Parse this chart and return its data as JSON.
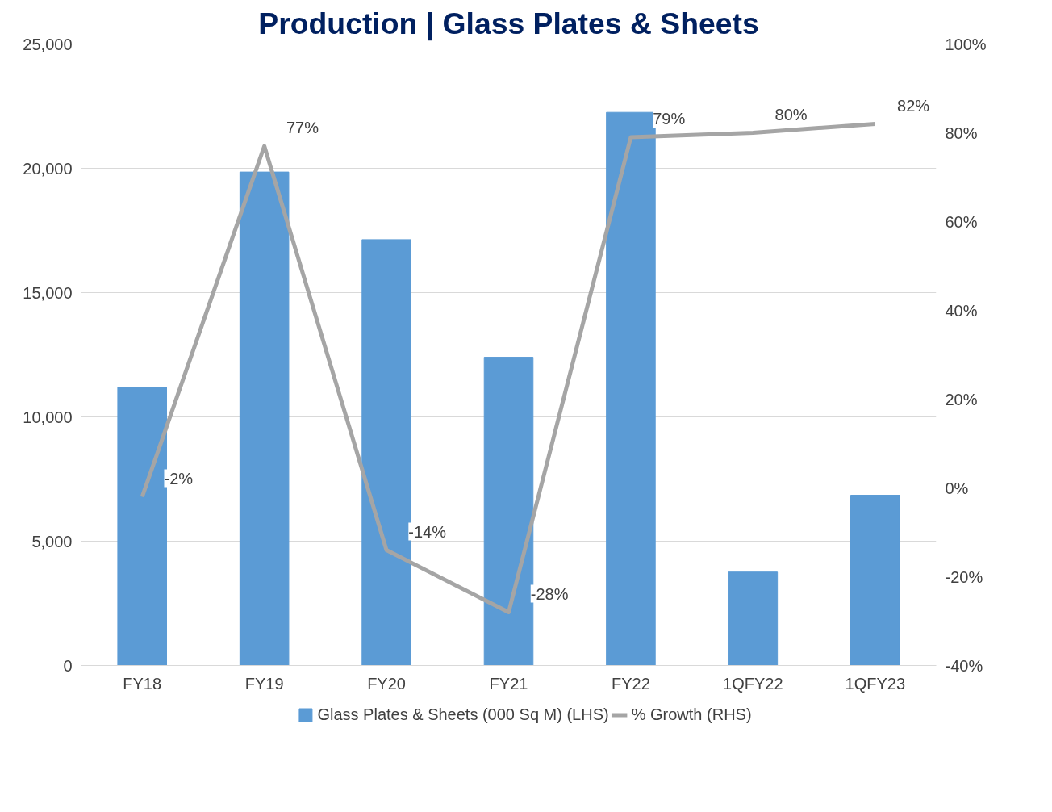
{
  "chart_data": {
    "type": "bar",
    "title": "Production | Glass Plates & Sheets",
    "categories": [
      "FY18",
      "FY19",
      "FY20",
      "FY21",
      "FY22",
      "1QFY22",
      "1QFY23"
    ],
    "series": [
      {
        "name": "Glass Plates & Sheets (000 Sq M) (LHS)",
        "color": "#5b9bd5",
        "values": [
          11200,
          19850,
          17130,
          12400,
          22250,
          3760,
          6850
        ]
      },
      {
        "name": "% Growth (RHS)",
        "type": "line",
        "axis": "y2",
        "color": "#a5a5a5",
        "values": [
          -2,
          77,
          -14,
          -28,
          79,
          80,
          82
        ],
        "value_labels": [
          "-2%",
          "77%",
          "-14%",
          "-28%",
          "79%",
          "80%",
          "82%"
        ]
      }
    ],
    "ylim": [
      0,
      25000
    ],
    "yticks": [
      0,
      {
        "value": 5000,
        "label": "5,000"
      },
      {
        "value": 10000,
        "label": "10,000"
      },
      {
        "value": 15000,
        "label": "15,000"
      },
      {
        "value": 20000,
        "label": "20,000"
      },
      {
        "value": 25000,
        "label": "25,000"
      }
    ],
    "y2lim": [
      -40,
      100
    ],
    "y2ticks": [
      {
        "value": -40,
        "label": "-40%"
      },
      {
        "value": -20,
        "label": "-20%"
      },
      {
        "value": 0,
        "label": "0%"
      },
      {
        "value": 20,
        "label": "20%"
      },
      {
        "value": 40,
        "label": "40%"
      },
      {
        "value": 60,
        "label": "60%"
      },
      {
        "value": 80,
        "label": "80%"
      },
      {
        "value": 100,
        "label": "100%"
      }
    ],
    "grid": "y",
    "legend": "bottom",
    "marker": "none",
    "line_style": "solid"
  }
}
